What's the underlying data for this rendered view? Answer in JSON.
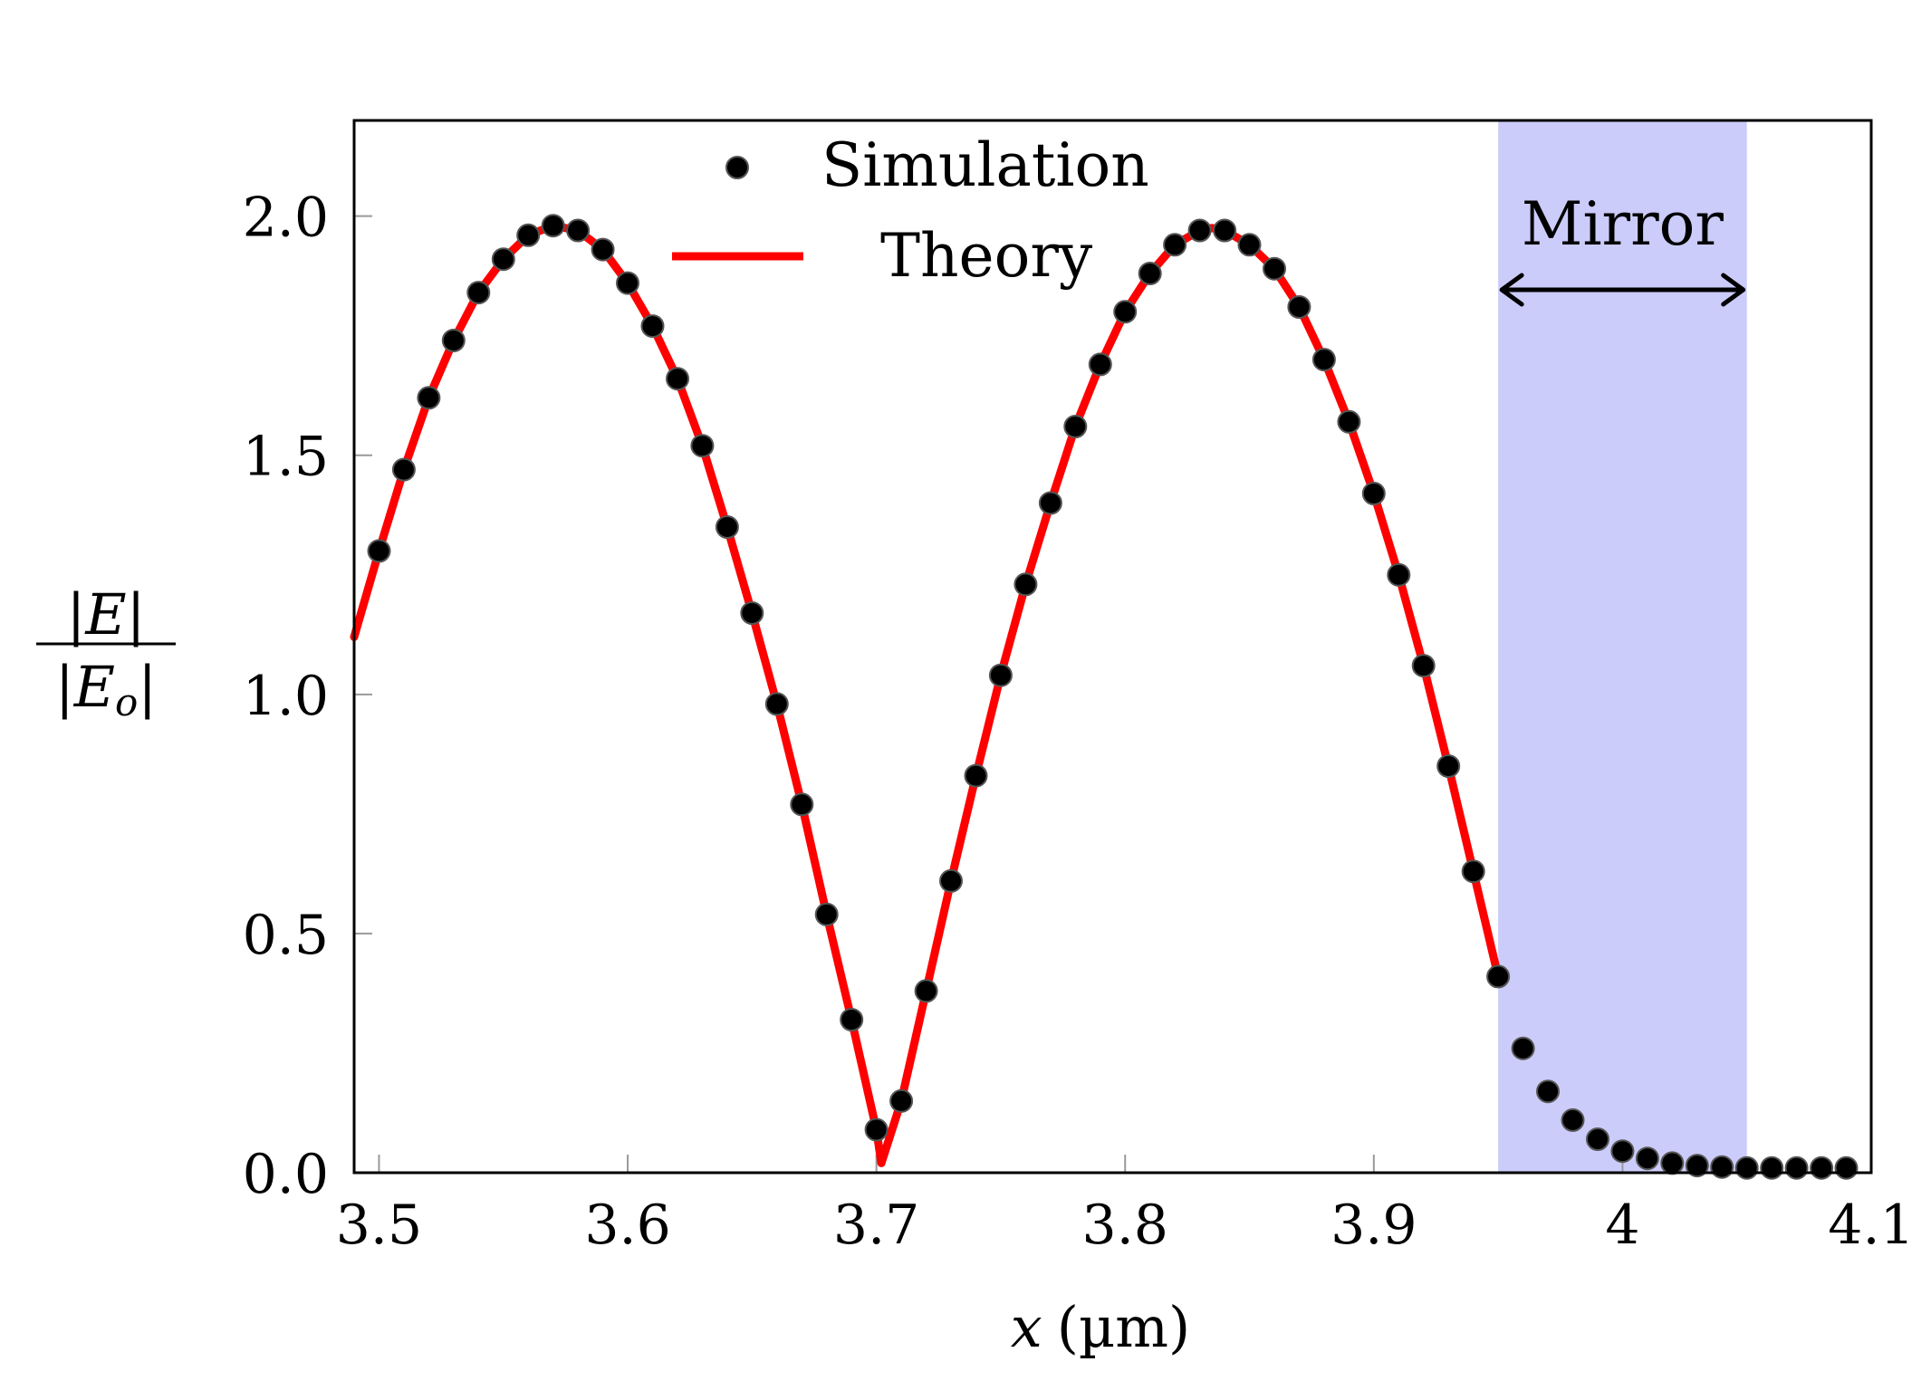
{
  "chart_data": {
    "type": "line",
    "x_axis": {
      "label_var": "x",
      "label_unit": "(µm)",
      "range": [
        3.49,
        4.1
      ],
      "ticks": [
        3.5,
        3.6,
        3.7,
        3.8,
        3.9,
        4.0,
        4.1
      ],
      "tick_labels": [
        "3.5",
        "3.6",
        "3.7",
        "3.8",
        "3.9",
        "4",
        "4.1"
      ]
    },
    "y_axis": {
      "label_numerator": "|E|",
      "label_denominator": "|E",
      "label_denominator_sub": "o",
      "label_denominator_close": "|",
      "range": [
        0,
        2.2
      ],
      "ticks": [
        0.0,
        0.5,
        1.0,
        1.5,
        2.0
      ],
      "tick_labels": [
        "0.0",
        "0.5",
        "1.0",
        "1.5",
        "2.0"
      ]
    },
    "legend": {
      "position": "top-center",
      "entries": [
        "Simulation",
        "Theory"
      ]
    },
    "mirror_region": {
      "label": "Mirror",
      "x_start": 3.95,
      "x_end": 4.05,
      "color": "#ccccfa"
    },
    "series": [
      {
        "name": "Simulation",
        "kind": "scatter",
        "color": "#000000",
        "x": [
          3.5,
          3.51,
          3.52,
          3.53,
          3.54,
          3.55,
          3.56,
          3.57,
          3.58,
          3.59,
          3.6,
          3.61,
          3.62,
          3.63,
          3.64,
          3.65,
          3.66,
          3.67,
          3.68,
          3.69,
          3.7,
          3.71,
          3.72,
          3.73,
          3.74,
          3.75,
          3.76,
          3.77,
          3.78,
          3.79,
          3.8,
          3.81,
          3.82,
          3.83,
          3.84,
          3.85,
          3.86,
          3.87,
          3.88,
          3.89,
          3.9,
          3.91,
          3.92,
          3.93,
          3.94,
          3.95,
          3.96,
          3.97,
          3.98,
          3.99,
          4.0,
          4.01,
          4.02,
          4.03,
          4.04,
          4.05,
          4.06,
          4.07,
          4.08,
          4.09
        ],
        "y": [
          1.3,
          1.47,
          1.62,
          1.74,
          1.84,
          1.91,
          1.96,
          1.98,
          1.97,
          1.93,
          1.86,
          1.77,
          1.66,
          1.52,
          1.35,
          1.17,
          0.98,
          0.77,
          0.54,
          0.32,
          0.09,
          0.15,
          0.38,
          0.61,
          0.83,
          1.04,
          1.23,
          1.4,
          1.56,
          1.69,
          1.8,
          1.88,
          1.94,
          1.97,
          1.97,
          1.94,
          1.89,
          1.81,
          1.7,
          1.57,
          1.42,
          1.25,
          1.06,
          0.85,
          0.63,
          0.41,
          0.26,
          0.17,
          0.11,
          0.07,
          0.045,
          0.03,
          0.02,
          0.015,
          0.012,
          0.01,
          0.01,
          0.01,
          0.01,
          0.01
        ]
      },
      {
        "name": "Theory",
        "kind": "line",
        "color": "#ff0000",
        "x": [
          3.49,
          3.5,
          3.51,
          3.52,
          3.53,
          3.54,
          3.55,
          3.56,
          3.57,
          3.58,
          3.59,
          3.6,
          3.61,
          3.62,
          3.63,
          3.64,
          3.65,
          3.66,
          3.67,
          3.68,
          3.69,
          3.7,
          3.702,
          3.71,
          3.72,
          3.73,
          3.74,
          3.75,
          3.76,
          3.77,
          3.78,
          3.79,
          3.8,
          3.81,
          3.82,
          3.83,
          3.835,
          3.84,
          3.85,
          3.86,
          3.87,
          3.88,
          3.89,
          3.9,
          3.91,
          3.92,
          3.93,
          3.94,
          3.95
        ],
        "y": [
          1.12,
          1.3,
          1.47,
          1.62,
          1.74,
          1.84,
          1.91,
          1.96,
          1.98,
          1.97,
          1.93,
          1.86,
          1.77,
          1.66,
          1.52,
          1.35,
          1.17,
          0.98,
          0.77,
          0.54,
          0.32,
          0.09,
          0.02,
          0.15,
          0.38,
          0.61,
          0.83,
          1.04,
          1.23,
          1.4,
          1.56,
          1.69,
          1.8,
          1.88,
          1.94,
          1.97,
          1.975,
          1.97,
          1.94,
          1.89,
          1.81,
          1.7,
          1.57,
          1.42,
          1.25,
          1.06,
          0.85,
          0.63,
          0.41
        ]
      }
    ]
  }
}
